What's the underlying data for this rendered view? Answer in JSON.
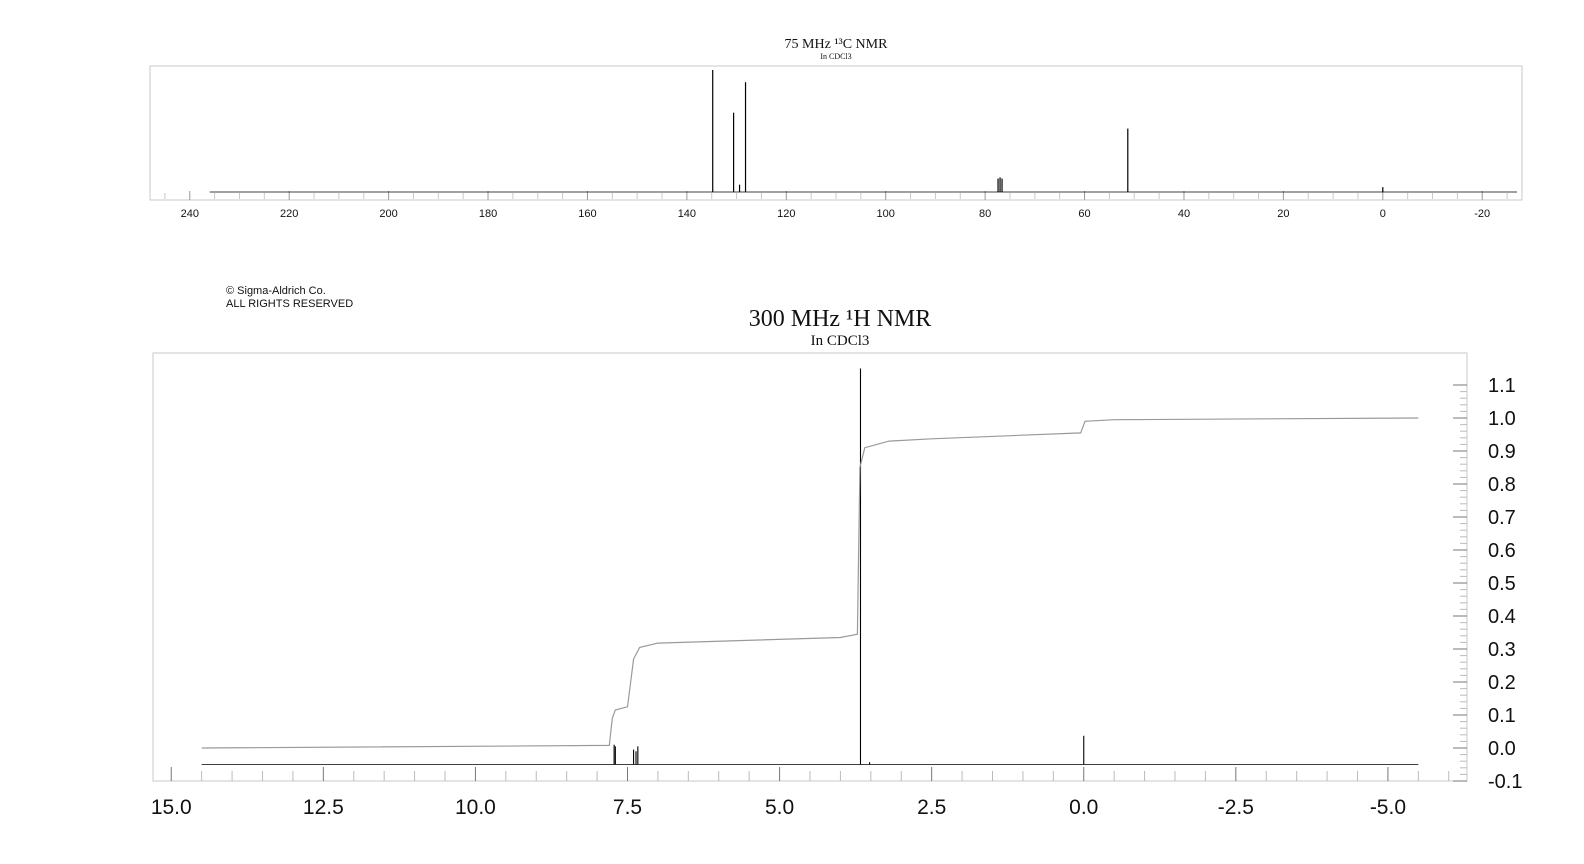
{
  "copyright": {
    "line1": "© Sigma-Aldrich Co.",
    "line2": "ALL RIGHTS RESERVED"
  },
  "colors": {
    "spectrum": "#000000",
    "frame": "#c8c8c8",
    "integral": "#9a9a9a",
    "text": "#111111"
  },
  "chart_data": [
    {
      "type": "line",
      "title": "75 MHz ¹³C NMR",
      "subtitle": "In CDCl3",
      "xlabel": "",
      "ylabel": "",
      "xlim": [
        248,
        -28
      ],
      "x_ticks": [
        240,
        220,
        200,
        180,
        160,
        140,
        120,
        100,
        80,
        60,
        40,
        20,
        0,
        -20
      ],
      "x_tick_labels": [
        "240",
        "220",
        "200",
        "180",
        "160",
        "140",
        "120",
        "100",
        "80",
        "60",
        "40",
        "20",
        "0",
        "-20"
      ],
      "baseline_range": [
        236,
        -27
      ],
      "peaks": [
        {
          "x": 134.8,
          "intensity": 1.0
        },
        {
          "x": 130.6,
          "intensity": 0.65
        },
        {
          "x": 129.4,
          "intensity": 0.06
        },
        {
          "x": 128.2,
          "intensity": 0.9
        },
        {
          "x": 77.4,
          "intensity": 0.11
        },
        {
          "x": 77.0,
          "intensity": 0.12
        },
        {
          "x": 76.6,
          "intensity": 0.11
        },
        {
          "x": 51.3,
          "intensity": 0.52
        },
        {
          "x": 0.0,
          "intensity": 0.04
        }
      ]
    },
    {
      "type": "line",
      "title": "300 MHz ¹H NMR",
      "subtitle": "In CDCl3",
      "xlabel": "",
      "ylabel": "",
      "xlim": [
        15.3,
        -6.3
      ],
      "ylim": [
        -0.1,
        1.15
      ],
      "x_ticks": [
        15.0,
        12.5,
        10.0,
        7.5,
        5.0,
        2.5,
        0.0,
        -2.5,
        -5.0
      ],
      "x_tick_labels": [
        "15.0",
        "12.5",
        "10.0",
        "7.5",
        "5.0",
        "2.5",
        "0.0",
        "-2.5",
        "-5.0"
      ],
      "y_ticks": [
        1.1,
        1.0,
        0.9,
        0.8,
        0.7,
        0.6,
        0.5,
        0.4,
        0.3,
        0.2,
        0.1,
        0.0,
        -0.1
      ],
      "y_tick_labels": [
        "1.1",
        "1.0",
        "0.9",
        "0.8",
        "0.7",
        "0.6",
        "0.5",
        "0.4",
        "0.3",
        "0.2",
        "0.1",
        "0.0",
        "-0.1"
      ],
      "baseline_range": [
        14.5,
        -5.5
      ],
      "baseline_level": -0.05,
      "peaks": [
        {
          "x": 7.72,
          "y": 0.01
        },
        {
          "x": 7.7,
          "y": 0.005
        },
        {
          "x": 7.4,
          "y": -0.005
        },
        {
          "x": 7.36,
          "y": -0.01
        },
        {
          "x": 7.33,
          "y": 0.005
        },
        {
          "x": 3.67,
          "y": 1.15
        },
        {
          "x": 3.52,
          "y": -0.043
        },
        {
          "x": 0.0,
          "y": 0.037
        }
      ],
      "integral": [
        [
          14.5,
          0.0
        ],
        [
          7.8,
          0.008
        ],
        [
          7.75,
          0.09
        ],
        [
          7.7,
          0.115
        ],
        [
          7.5,
          0.125
        ],
        [
          7.4,
          0.27
        ],
        [
          7.3,
          0.305
        ],
        [
          7.0,
          0.318
        ],
        [
          4.0,
          0.335
        ],
        [
          3.72,
          0.345
        ],
        [
          3.68,
          0.85
        ],
        [
          3.6,
          0.91
        ],
        [
          3.2,
          0.93
        ],
        [
          2.5,
          0.937
        ],
        [
          0.05,
          0.955
        ],
        [
          -0.02,
          0.99
        ],
        [
          -0.5,
          0.995
        ],
        [
          -5.5,
          1.0
        ]
      ]
    }
  ]
}
